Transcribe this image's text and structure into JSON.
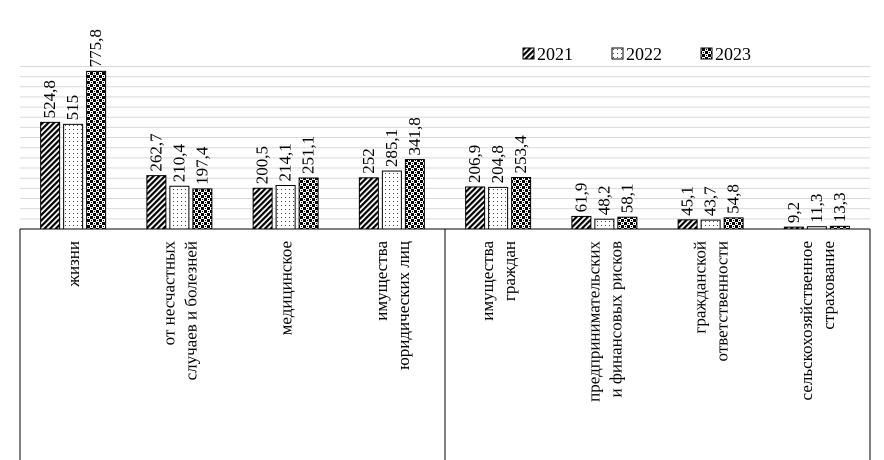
{
  "chart_data": {
    "type": "bar",
    "categories": [
      [
        "жизни"
      ],
      [
        "от несчастных",
        "случаев и болезней"
      ],
      [
        "медицинское"
      ],
      [
        "имущества",
        "юридических лиц"
      ],
      [
        "имущества",
        "граждан"
      ],
      [
        "предпринимательских",
        "и финансовых рисков"
      ],
      [
        "гражданской",
        "ответственности"
      ],
      [
        "сельскохозяйственное",
        "страхование"
      ]
    ],
    "series": [
      {
        "name": "2021",
        "values": [
          524.8,
          262.7,
          200.5,
          252,
          206.9,
          61.9,
          45.1,
          9.2
        ],
        "labels": [
          "524,8",
          "262,7",
          "200,5",
          "252",
          "206,9",
          "61,9",
          "45,1",
          "9,2"
        ]
      },
      {
        "name": "2022",
        "values": [
          515,
          210.4,
          214.1,
          285.1,
          204.8,
          48.2,
          43.7,
          11.3
        ],
        "labels": [
          "515",
          "210,4",
          "214,1",
          "285,1",
          "204,8",
          "48,2",
          "43,7",
          "11,3"
        ]
      },
      {
        "name": "2023",
        "values": [
          775.8,
          197.4,
          251.1,
          341.8,
          253.4,
          58.1,
          54.8,
          13.3
        ],
        "labels": [
          "775,8",
          "197,4",
          "251,1",
          "341,8",
          "253,4",
          "58,1",
          "54,8",
          "13,3"
        ]
      }
    ],
    "title": "",
    "xlabel": "",
    "ylabel": "",
    "ylim": [
      0,
      800
    ],
    "grid": true,
    "legend_position": "top-right"
  }
}
